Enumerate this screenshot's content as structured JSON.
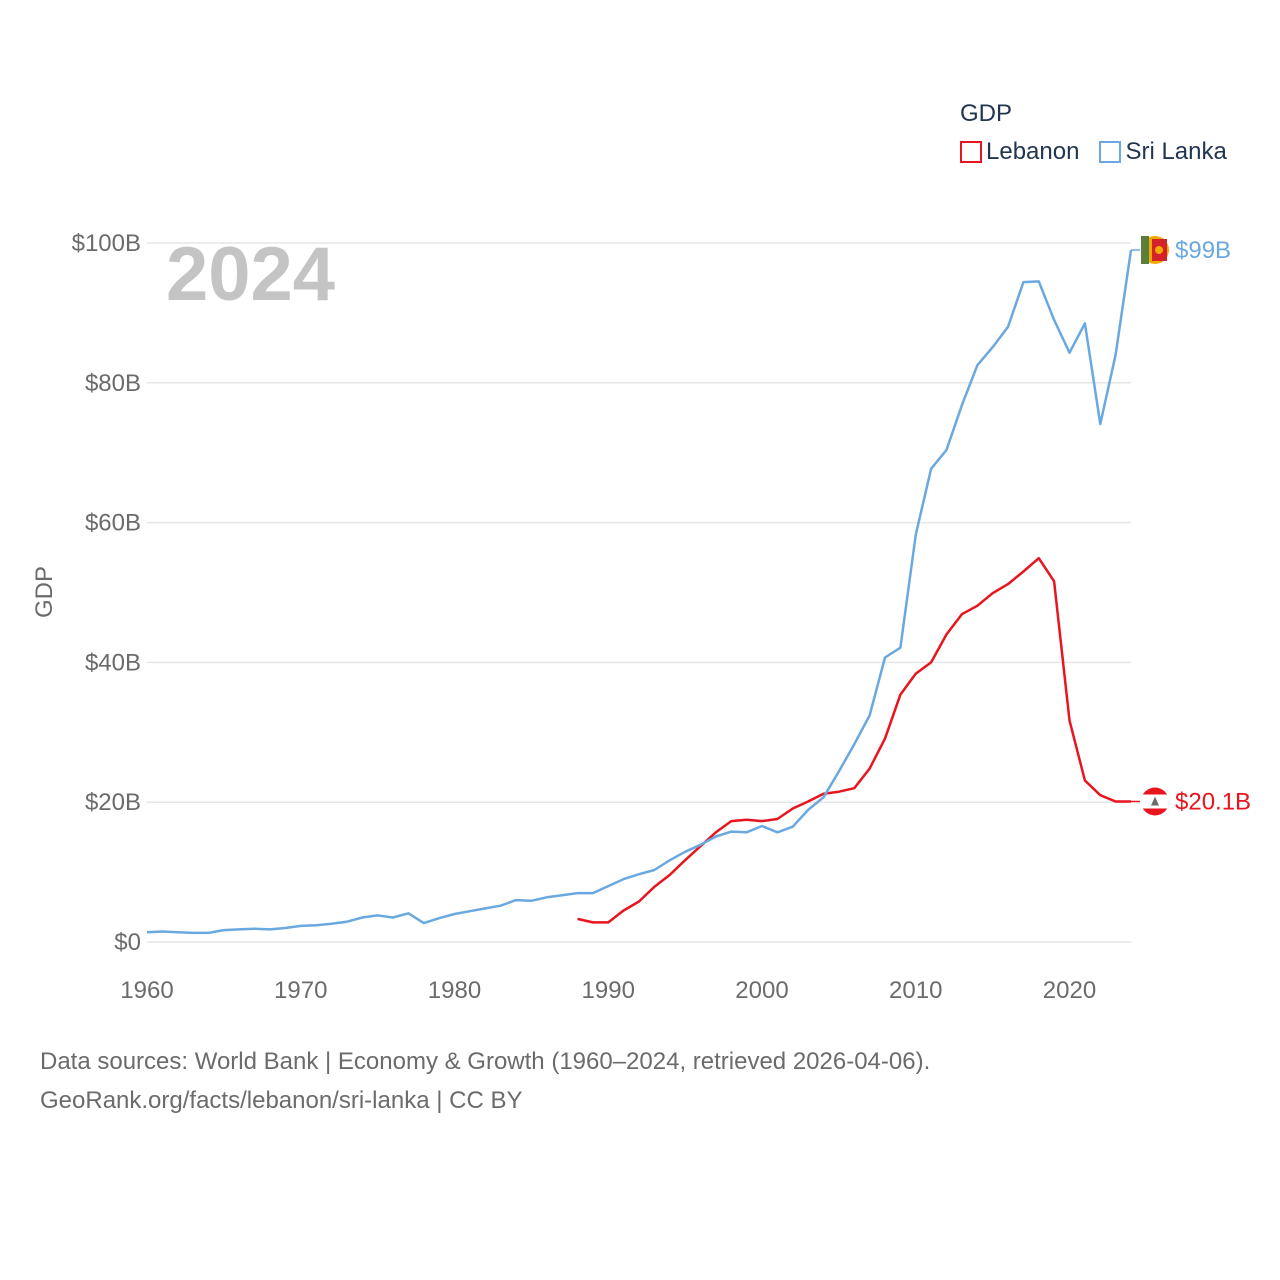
{
  "colors": {
    "lebanon": "#e8141e",
    "sri_lanka": "#6aa8e0",
    "grid": "#e6e6e6",
    "tick": "#6b6b6b",
    "year": "#c4c4c4"
  },
  "legend": {
    "title": "GDP",
    "items": [
      {
        "label": "Lebanon",
        "color": "#e8141e"
      },
      {
        "label": "Sri Lanka",
        "color": "#6aa8e0"
      }
    ]
  },
  "chart_data": {
    "type": "line",
    "title": "GDP",
    "year_label": "2024",
    "ylabel": "GDP",
    "xlabel": "",
    "xlim": [
      1960,
      2024
    ],
    "ylim": [
      0,
      100
    ],
    "x_ticks": [
      1960,
      1970,
      1980,
      1990,
      2000,
      2010,
      2020
    ],
    "y_ticks": [
      {
        "value": 0,
        "label": "$0"
      },
      {
        "value": 20,
        "label": "$20B"
      },
      {
        "value": 40,
        "label": "$40B"
      },
      {
        "value": 60,
        "label": "$60B"
      },
      {
        "value": 80,
        "label": "$80B"
      },
      {
        "value": 100,
        "label": "$100B"
      }
    ],
    "units": "billions USD",
    "series": [
      {
        "name": "Lebanon",
        "color": "#e8141e",
        "end_label": "$20.1B",
        "x": [
          1988,
          1989,
          1990,
          1991,
          1992,
          1993,
          1994,
          1995,
          1996,
          1997,
          1998,
          1999,
          2000,
          2001,
          2002,
          2003,
          2004,
          2005,
          2006,
          2007,
          2008,
          2009,
          2010,
          2011,
          2012,
          2013,
          2014,
          2015,
          2016,
          2017,
          2018,
          2019,
          2020,
          2021,
          2022,
          2023,
          2024
        ],
        "values": [
          3.3,
          2.8,
          2.8,
          4.5,
          5.8,
          7.9,
          9.6,
          11.7,
          13.7,
          15.7,
          17.3,
          17.5,
          17.3,
          17.6,
          19.1,
          20.1,
          21.2,
          21.5,
          22.0,
          24.8,
          29.1,
          35.4,
          38.4,
          40.0,
          44.0,
          46.9,
          48.1,
          49.9,
          51.2,
          53.0,
          54.9,
          51.6,
          31.7,
          23.1,
          21.0,
          20.1,
          20.1
        ]
      },
      {
        "name": "Sri Lanka",
        "color": "#6aa8e0",
        "end_label": "$99B",
        "x": [
          1960,
          1961,
          1962,
          1963,
          1964,
          1965,
          1966,
          1967,
          1968,
          1969,
          1970,
          1971,
          1972,
          1973,
          1974,
          1975,
          1976,
          1977,
          1978,
          1979,
          1980,
          1981,
          1982,
          1983,
          1984,
          1985,
          1986,
          1987,
          1988,
          1989,
          1990,
          1991,
          1992,
          1993,
          1994,
          1995,
          1996,
          1997,
          1998,
          1999,
          2000,
          2001,
          2002,
          2003,
          2004,
          2005,
          2006,
          2007,
          2008,
          2009,
          2010,
          2011,
          2012,
          2013,
          2014,
          2015,
          2016,
          2017,
          2018,
          2019,
          2020,
          2021,
          2022,
          2023,
          2024
        ],
        "values": [
          1.4,
          1.5,
          1.4,
          1.3,
          1.3,
          1.7,
          1.8,
          1.9,
          1.8,
          2.0,
          2.3,
          2.4,
          2.6,
          2.9,
          3.5,
          3.8,
          3.5,
          4.1,
          2.7,
          3.4,
          4.0,
          4.4,
          4.8,
          5.2,
          6.0,
          5.9,
          6.4,
          6.7,
          7.0,
          7.0,
          8.0,
          9.0,
          9.7,
          10.3,
          11.7,
          12.9,
          13.9,
          15.1,
          15.8,
          15.7,
          16.6,
          15.7,
          16.5,
          18.9,
          20.7,
          24.4,
          28.3,
          32.4,
          40.7,
          42.1,
          58.3,
          67.7,
          70.4,
          76.8,
          82.5,
          85.1,
          88.0,
          94.4,
          94.5,
          89.0,
          84.3,
          88.5,
          74.1,
          84.0,
          99.0
        ]
      }
    ]
  },
  "footer": {
    "line1": "Data sources: World Bank | Economy & Growth (1960–2024, retrieved 2026-04-06).",
    "line2": "GeoRank.org/facts/lebanon/sri-lanka | CC BY"
  }
}
